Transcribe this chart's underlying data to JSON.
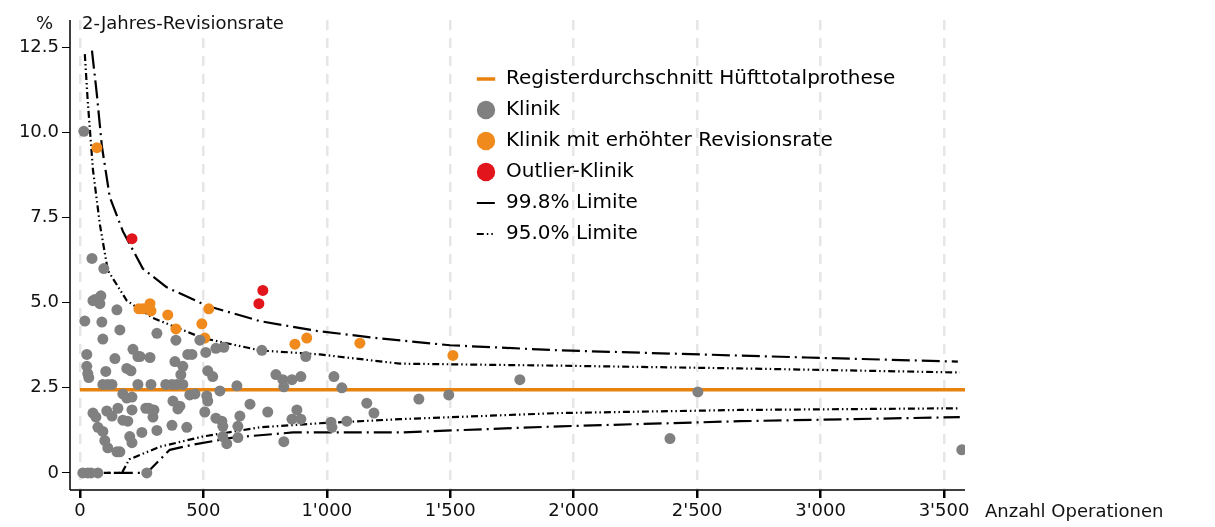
{
  "chart_data": {
    "type": "scatter",
    "title": "2-Jahres-Revisionsrate",
    "ylabel": "%",
    "xlabel": "Anzahl Operationen",
    "xlim": [
      -40,
      3585
    ],
    "ylim": [
      -0.5,
      13.3
    ],
    "xticks": [
      0,
      500,
      {
        "value": 1000,
        "label": "1'000"
      },
      {
        "value": 1500,
        "label": "1'500"
      },
      {
        "value": 2000,
        "label": "2'000"
      },
      {
        "value": 2500,
        "label": "2'500"
      },
      {
        "value": 3000,
        "label": "3'000"
      },
      {
        "value": 3500,
        "label": "3'500"
      }
    ],
    "yticks": [
      0,
      2.5,
      {
        "value": 5,
        "label": "5.0"
      },
      7.5,
      {
        "value": 10,
        "label": "10.0"
      },
      12.5
    ],
    "grid": "x",
    "legend": "top right",
    "marker": "circle",
    "ref_lines": [
      {
        "axis": "y",
        "value": 2.44,
        "label": "Registerdurchschnitt Hüfttotalprothese",
        "color": "#e8820c"
      }
    ],
    "series": [
      {
        "name": "Klinik",
        "color": "#808080",
        "x": [
          16,
          49,
          97,
          53,
          61,
          85,
          81,
          20,
          89,
          150,
          162,
          93,
          215,
          235,
          243,
          284,
          28,
          28,
          32,
          36,
          142,
          105,
          190,
          207,
          312,
          389,
          385,
          417,
          409,
          486,
          510,
          518,
          538,
          437,
          454,
          551,
          583,
          737,
          794,
          822,
          859,
          895,
          915,
          826,
          93,
          113,
          130,
          235,
          288,
          348,
          373,
          393,
          417,
          174,
          190,
          211,
          377,
          397,
          405,
          445,
          466,
          514,
          518,
          567,
          636,
          689,
          761,
          879,
          859,
          895,
          53,
          65,
          109,
          130,
          154,
          174,
          194,
          211,
          267,
          279,
          300,
          296,
          73,
          93,
          101,
          113,
          150,
          162,
          202,
          211,
          251,
          312,
          373,
          433,
          506,
          551,
          575,
          579,
          579,
          595,
          648,
          640,
          640,
          826,
          12,
          32,
          45,
          73,
          271,
          1029,
          1061,
          1162,
          1191,
          1373,
          1494,
          1782,
          1017,
          1021,
          1081,
          2503,
          2390,
          3572
        ],
        "values": [
          10.03,
          6.3,
          6.0,
          5.06,
          5.09,
          5.2,
          4.97,
          4.46,
          4.43,
          4.79,
          4.2,
          3.93,
          3.63,
          3.42,
          3.42,
          3.39,
          3.48,
          3.13,
          2.92,
          2.8,
          3.36,
          2.98,
          3.07,
          3.0,
          4.1,
          3.9,
          3.27,
          3.13,
          2.89,
          3.9,
          3.54,
          3.0,
          2.83,
          3.48,
          3.48,
          3.66,
          3.69,
          3.6,
          2.89,
          2.74,
          2.74,
          2.83,
          3.42,
          2.53,
          2.6,
          2.6,
          2.6,
          2.6,
          2.6,
          2.6,
          2.6,
          2.6,
          2.6,
          2.32,
          2.2,
          2.23,
          2.11,
          1.88,
          1.96,
          2.29,
          2.32,
          2.26,
          2.11,
          2.41,
          2.56,
          2.02,
          1.79,
          1.85,
          1.58,
          1.58,
          1.76,
          1.64,
          1.82,
          1.67,
          1.9,
          1.55,
          1.52,
          1.85,
          1.9,
          1.9,
          1.85,
          1.64,
          1.34,
          1.22,
          0.95,
          0.74,
          0.62,
          0.62,
          1.07,
          0.89,
          1.19,
          1.25,
          1.4,
          1.34,
          1.79,
          1.61,
          1.52,
          1.37,
          1.07,
          0.86,
          1.67,
          1.37,
          1.04,
          0.92,
          0,
          0,
          0,
          0,
          0,
          2.83,
          2.5,
          2.05,
          1.76,
          2.17,
          2.29,
          2.74,
          1.49,
          1.34,
          1.52,
          2.38,
          1.01,
          0.68
        ]
      },
      {
        "name": "Klinik mit erhöhter Revisionsrate",
        "color": "#f08a1c",
        "x": [
          69,
          239,
          255,
          284,
          288,
          356,
          389,
          494,
          522,
          506,
          871,
          919,
          1134,
          1511
        ],
        "values": [
          9.55,
          4.82,
          4.82,
          4.97,
          4.76,
          4.64,
          4.23,
          4.38,
          4.82,
          3.96,
          3.78,
          3.96,
          3.81,
          3.45
        ]
      },
      {
        "name": "Outlier-Klinik",
        "color": "#e2141c",
        "x": [
          211,
          725,
          741
        ],
        "values": [
          6.88,
          4.97,
          5.36
        ]
      },
      {
        "name": "99.8% Limite",
        "type": "line",
        "color": "#000000",
        "line_style": "dashed",
        "marker": "none",
        "x": [
          49,
          69,
          89,
          121,
          174,
          255,
          352,
          514,
          729,
          960,
          1203,
          1499,
          1944,
          2944,
          3556,
          null,
          20,
          271,
          364,
          458,
          620,
          863,
          1296,
          1944,
          2673,
          3564
        ],
        "values": [
          12.4,
          11.1,
          9.6,
          8.1,
          7.1,
          6.0,
          5.45,
          4.91,
          4.46,
          4.17,
          3.96,
          3.75,
          3.6,
          3.39,
          3.27,
          null,
          0,
          0,
          0.68,
          0.83,
          1.04,
          1.19,
          1.19,
          1.37,
          1.52,
          1.64
        ]
      },
      {
        "name": "95.0% Limite",
        "type": "line",
        "color": "#000000",
        "line_style": "dotted",
        "marker": "none",
        "x": [
          20,
          32,
          53,
          81,
          113,
          190,
          296,
          498,
          729,
          972,
          1296,
          1944,
          2673,
          3564,
          null,
          20,
          170,
          200,
          324,
          498,
          729,
          972,
          1296,
          1944,
          2673,
          3564
        ],
        "values": [
          12.3,
          10.9,
          8.9,
          7.3,
          5.95,
          5.06,
          4.55,
          3.96,
          3.6,
          3.48,
          3.21,
          3.15,
          3.07,
          2.95,
          null,
          0,
          0,
          0.4,
          0.77,
          1.07,
          1.34,
          1.46,
          1.58,
          1.76,
          1.85,
          1.9
        ]
      }
    ]
  }
}
